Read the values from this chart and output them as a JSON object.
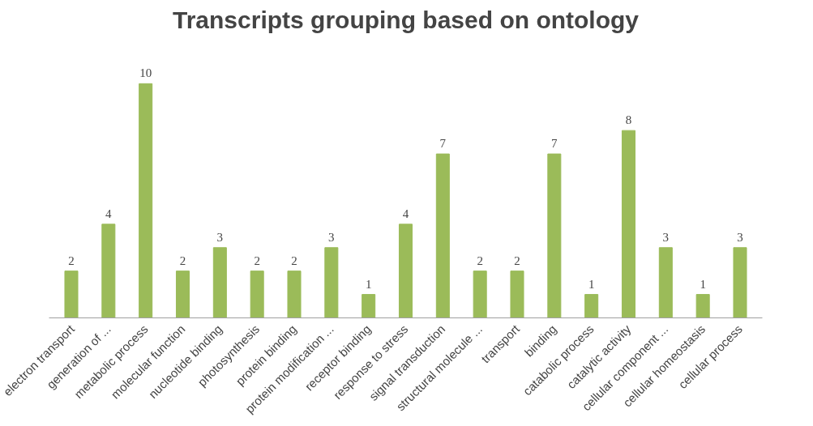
{
  "chart_data": {
    "type": "bar",
    "title": "Transcripts grouping based on ontology",
    "categories": [
      "electron transport",
      "generation of ...",
      "metabolic process",
      "molecular function",
      "nucleotide binding",
      "photosynthesis",
      "protein binding",
      "protein modification ...",
      "receptor binding",
      "response to stress",
      "signal transduction",
      "structural molecule ...",
      "transport",
      "binding",
      "catabolic process",
      "catalytic activity",
      "cellular component ...",
      "cellular homeostasis",
      "cellular process"
    ],
    "values": [
      2,
      4,
      10,
      2,
      3,
      2,
      2,
      3,
      1,
      4,
      7,
      2,
      2,
      7,
      1,
      8,
      3,
      1,
      3
    ],
    "color": "#9bbb59",
    "data_labels": true,
    "grid": false
  }
}
